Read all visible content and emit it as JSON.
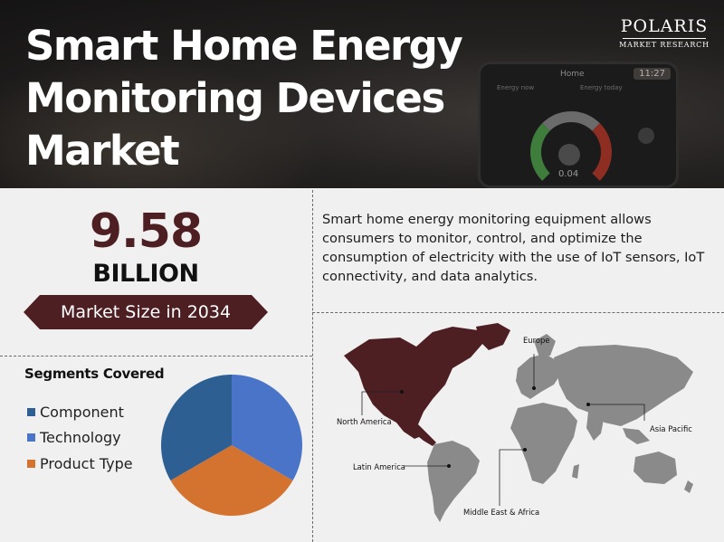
{
  "header": {
    "title_line1": "Smart Home Energy",
    "title_line2": "Monitoring Devices Market",
    "logo_name": "POLARIS",
    "logo_subtitle": "MARKET RESEARCH",
    "device": {
      "home_label": "Home",
      "time": "11:27",
      "energy_now_label": "Energy now",
      "energy_today_label": "Energy today",
      "reading": "0.04"
    }
  },
  "market": {
    "value": "9.58",
    "unit": "BILLION",
    "label": "Market Size in 2034"
  },
  "description": "Smart home energy monitoring equipment allows consumers to monitor, control, and optimize the consumption of electricity with the use of IoT sensors, IoT connectivity, and data analytics.",
  "segments": {
    "title": "Segments Covered",
    "items": [
      {
        "label": "Component",
        "color": "#2e5f93",
        "share": 0.3333
      },
      {
        "label": "Technology",
        "color": "#4a74c8",
        "share": 0.3333
      },
      {
        "label": "Product Type",
        "color": "#d4732f",
        "share": 0.3334
      }
    ]
  },
  "map": {
    "highlight_color": "#4d1e22",
    "land_color": "#8a8a8a",
    "regions": [
      {
        "name": "North America",
        "highlighted": true
      },
      {
        "name": "Europe",
        "highlighted": false
      },
      {
        "name": "Asia Pacific",
        "highlighted": false
      },
      {
        "name": "Latin America",
        "highlighted": false
      },
      {
        "name": "Middle East & Africa",
        "highlighted": false
      }
    ]
  },
  "colors": {
    "brand_maroon": "#4d1e22",
    "background": "#f1f0f0",
    "header_dark": "#1c1b1a"
  }
}
